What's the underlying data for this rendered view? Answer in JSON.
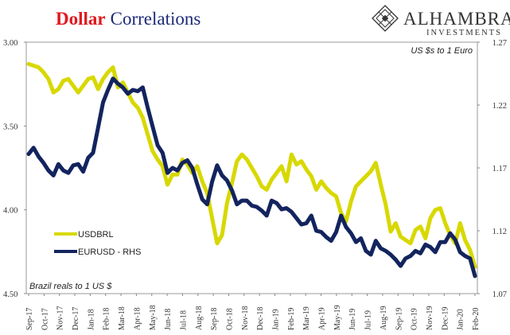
{
  "header": {
    "title_red": "Dollar",
    "title_blue": "Correlations",
    "brand_name": "ALHAMBRA",
    "brand_sub": "INVESTMENTS"
  },
  "chart_data": {
    "type": "line",
    "annotation_right": "US $s to 1 Euro",
    "annotation_left": "Brazil reals to 1 US $",
    "left_axis": {
      "labels": [
        "3.00",
        "3.50",
        "4.00",
        "4.50"
      ],
      "min": 3.0,
      "max": 4.5,
      "inverted": true
    },
    "right_axis": {
      "labels": [
        "1.27",
        "1.22",
        "1.17",
        "1.12",
        "1.07"
      ],
      "min": 1.07,
      "max": 1.27
    },
    "x_ticks": [
      "Sep-17",
      "Oct-17",
      "Nov-17",
      "Dec-17",
      "Jan-18",
      "Feb-18",
      "Mar-18",
      "Apr-18",
      "May-18",
      "Jun-18",
      "Jul-18",
      "Aug-18",
      "Sep-18",
      "Oct-18",
      "Nov-18",
      "Dec-18",
      "Jan-19",
      "Feb-19",
      "Mar-19",
      "Apr-19",
      "May-19",
      "Jun-19",
      "Jul-19",
      "Aug-19",
      "Sep-19",
      "Oct-19",
      "Nov-19",
      "Dec-19",
      "Jan-20",
      "Feb-20"
    ],
    "grid": false,
    "legend_position": "bottom-left",
    "series": [
      {
        "name": "USDBRL",
        "axis": "left",
        "color": "#d8d800",
        "values": [
          3.13,
          3.14,
          3.15,
          3.18,
          3.22,
          3.3,
          3.28,
          3.23,
          3.22,
          3.26,
          3.3,
          3.26,
          3.22,
          3.21,
          3.28,
          3.22,
          3.18,
          3.15,
          3.27,
          3.24,
          3.3,
          3.36,
          3.39,
          3.45,
          3.55,
          3.65,
          3.7,
          3.74,
          3.85,
          3.79,
          3.79,
          3.7,
          3.73,
          3.78,
          3.74,
          3.83,
          3.9,
          4.05,
          4.2,
          4.15,
          3.96,
          3.84,
          3.71,
          3.67,
          3.7,
          3.75,
          3.8,
          3.86,
          3.88,
          3.82,
          3.78,
          3.74,
          3.83,
          3.67,
          3.73,
          3.71,
          3.76,
          3.8,
          3.88,
          3.83,
          3.87,
          3.9,
          3.92,
          4.02,
          4.07,
          3.95,
          3.86,
          3.83,
          3.8,
          3.77,
          3.72,
          3.85,
          3.97,
          4.13,
          4.08,
          4.16,
          4.18,
          4.2,
          4.12,
          4.1,
          4.17,
          4.05,
          4.0,
          3.99,
          4.08,
          4.15,
          4.2,
          4.08,
          4.18,
          4.24,
          4.34
        ]
      },
      {
        "name": "EURUSD - RHS",
        "axis": "right",
        "color": "#13245e",
        "values": [
          1.181,
          1.186,
          1.179,
          1.174,
          1.168,
          1.164,
          1.173,
          1.168,
          1.166,
          1.172,
          1.173,
          1.167,
          1.178,
          1.182,
          1.202,
          1.222,
          1.232,
          1.241,
          1.237,
          1.234,
          1.229,
          1.232,
          1.231,
          1.234,
          1.218,
          1.203,
          1.188,
          1.182,
          1.166,
          1.17,
          1.168,
          1.174,
          1.176,
          1.17,
          1.157,
          1.145,
          1.141,
          1.159,
          1.172,
          1.164,
          1.16,
          1.152,
          1.141,
          1.144,
          1.144,
          1.14,
          1.139,
          1.136,
          1.132,
          1.144,
          1.142,
          1.137,
          1.138,
          1.135,
          1.13,
          1.125,
          1.126,
          1.132,
          1.12,
          1.119,
          1.115,
          1.112,
          1.119,
          1.132,
          1.123,
          1.118,
          1.111,
          1.114,
          1.104,
          1.101,
          1.112,
          1.106,
          1.104,
          1.101,
          1.097,
          1.092,
          1.098,
          1.1,
          1.104,
          1.102,
          1.109,
          1.107,
          1.103,
          1.111,
          1.111,
          1.118,
          1.113,
          1.103,
          1.1,
          1.098,
          1.084
        ]
      }
    ]
  }
}
